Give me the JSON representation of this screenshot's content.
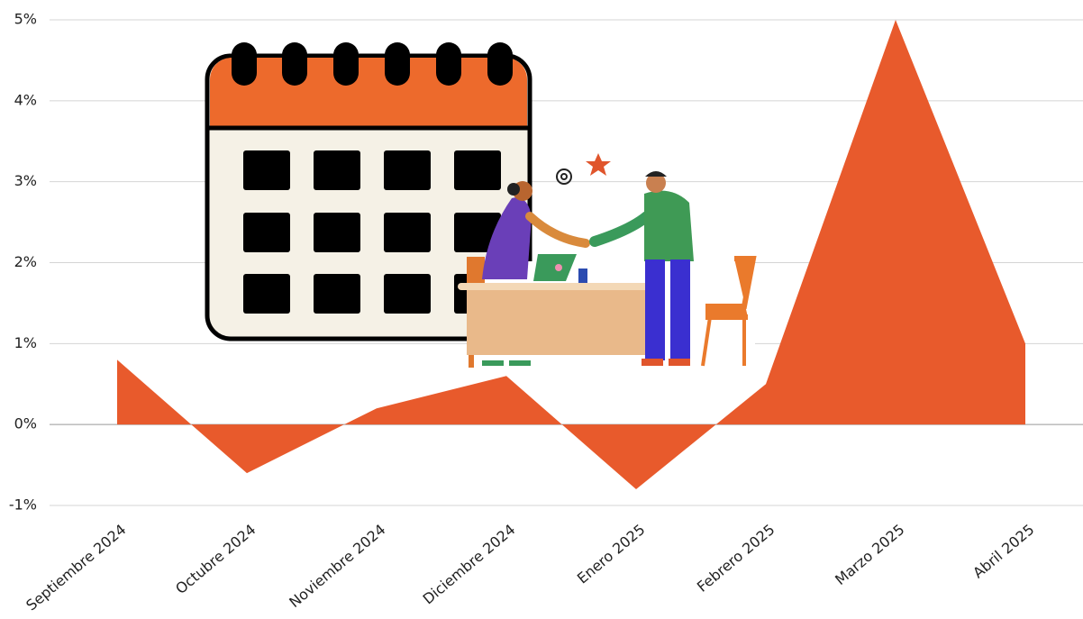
{
  "chart_data": {
    "type": "area",
    "categories": [
      "Septiembre 2024",
      "Octubre 2024",
      "Noviembre 2024",
      "Diciembre 2024",
      "Enero 2025",
      "Febrero 2025",
      "Marzo 2025",
      "Abril 2025"
    ],
    "values": [
      0.8,
      -0.6,
      0.2,
      0.6,
      -0.8,
      0.5,
      5.0,
      1.0
    ],
    "color": "#e85a2c",
    "ylim": [
      -1,
      5
    ],
    "yticks": [
      {
        "value": -1,
        "label": "-1%"
      },
      {
        "value": 0,
        "label": "0%"
      },
      {
        "value": 1,
        "label": "1%"
      },
      {
        "value": 2,
        "label": "2%"
      },
      {
        "value": 3,
        "label": "3%"
      },
      {
        "value": 4,
        "label": "4%"
      },
      {
        "value": 5,
        "label": "5%"
      }
    ],
    "grid": true
  }
}
